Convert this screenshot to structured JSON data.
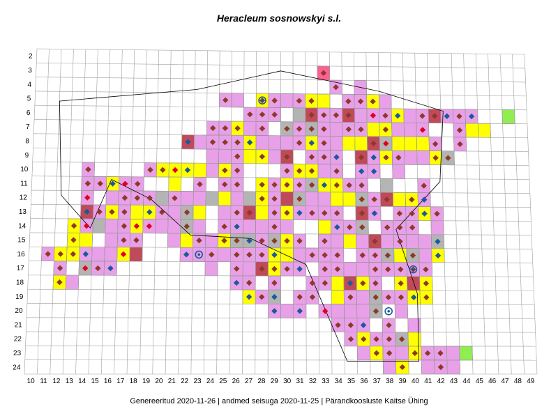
{
  "title": "Heracleum sosnowskyi s.l.",
  "footer": {
    "generated": "Genereeritud 2020-11-26",
    "data_state": "andmed seisuga 2020-11-25",
    "organization": "Pärandkoosluste Kaitse Ühing",
    "separator": "|"
  },
  "grid": {
    "columns": [
      "10",
      "11",
      "12",
      "13",
      "14",
      "15",
      "16",
      "17",
      "18",
      "19",
      "20",
      "21",
      "22",
      "23",
      "24",
      "25",
      "26",
      "27",
      "28",
      "29",
      "30",
      "31",
      "32",
      "33",
      "34",
      "35",
      "36",
      "37",
      "38",
      "39",
      "40",
      "41",
      "42",
      "43",
      "44",
      "45",
      "46",
      "47",
      "48",
      "49"
    ],
    "rows": [
      "2",
      "3",
      "4",
      "5",
      "6",
      "7",
      "8",
      "9",
      "10",
      "11",
      "12",
      "13",
      "14",
      "15",
      "16",
      "17",
      "18",
      "19",
      "20",
      "21",
      "22",
      "23",
      "24"
    ]
  },
  "colors": {
    "pink": "#e8a0e8",
    "yellow": "#ffff00",
    "gray": "#b4b4b4",
    "dark_red": "#c04a5a",
    "green": "#90ee50",
    "hot_pink": "#ff6090",
    "brown_marker": "#8b3a2a",
    "blue_marker": "#1a5a9a",
    "red_marker": "#e00020"
  }
}
